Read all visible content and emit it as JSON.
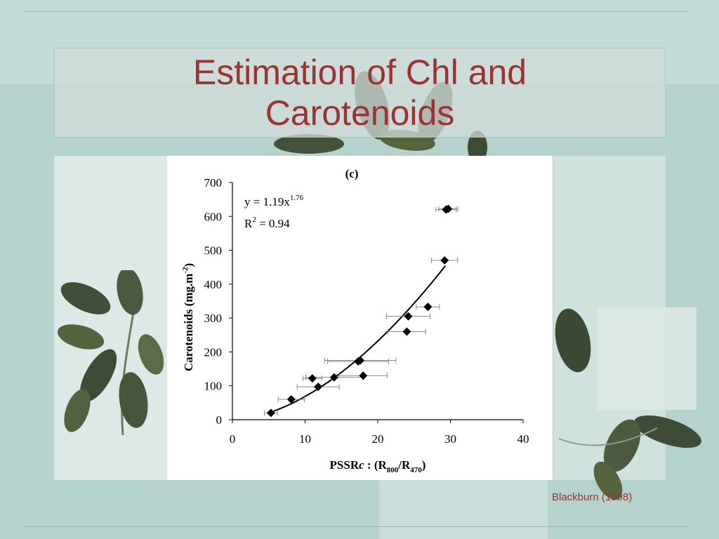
{
  "slide": {
    "title": "Estimation of Chl and Carotenoids",
    "citation": "Blackburn (1998)",
    "title_color": "#9a3236"
  },
  "chart_data": {
    "type": "scatter",
    "title": "(c)",
    "xlabel": "PSSRc : (R800/R470)",
    "xlabel_parts": {
      "main": "PSSR",
      "italic": "c",
      "mid": " : (R",
      "sub1": "800",
      "slash": "/R",
      "sub2": "470",
      "end": ")"
    },
    "ylabel": "Carotenoids (mg.m-2)",
    "ylabel_parts": {
      "main": "Carotenoids (mg.m",
      "sup": "-2",
      "end": ")"
    },
    "xlim": [
      0,
      40
    ],
    "ylim": [
      0,
      700
    ],
    "xticks": [
      "0",
      "10",
      "20",
      "30",
      "40"
    ],
    "yticks": [
      "0",
      "100",
      "200",
      "300",
      "400",
      "500",
      "600",
      "700"
    ],
    "equation": {
      "base": "y = 1.19x",
      "exponent": "1.76"
    },
    "r_squared": {
      "label": "R",
      "sup": "2",
      "value": " = 0.94"
    },
    "fit": {
      "coef": 1.19,
      "exp": 1.76,
      "x_range": [
        5.2,
        29.3
      ]
    },
    "points": [
      {
        "x": 5.3,
        "y": 20,
        "xerr": 0.9
      },
      {
        "x": 8.1,
        "y": 60,
        "xerr": 1.8
      },
      {
        "x": 11.0,
        "y": 122,
        "xerr": 1.3
      },
      {
        "x": 11.8,
        "y": 97,
        "xerr": 2.9
      },
      {
        "x": 14.0,
        "y": 125,
        "xerr": 3.9
      },
      {
        "x": 17.3,
        "y": 172,
        "xerr": 4.2
      },
      {
        "x": 17.6,
        "y": 175,
        "xerr": 4.9
      },
      {
        "x": 18.0,
        "y": 130,
        "xerr": 3.3
      },
      {
        "x": 24.0,
        "y": 260,
        "xerr": 2.6
      },
      {
        "x": 24.2,
        "y": 305,
        "xerr": 3.0
      },
      {
        "x": 26.9,
        "y": 333,
        "xerr": 1.6
      },
      {
        "x": 29.2,
        "y": 470,
        "xerr": 1.8
      },
      {
        "x": 29.4,
        "y": 620,
        "xerr": 1.4
      },
      {
        "x": 29.7,
        "y": 622,
        "xerr": 1.3
      }
    ]
  }
}
